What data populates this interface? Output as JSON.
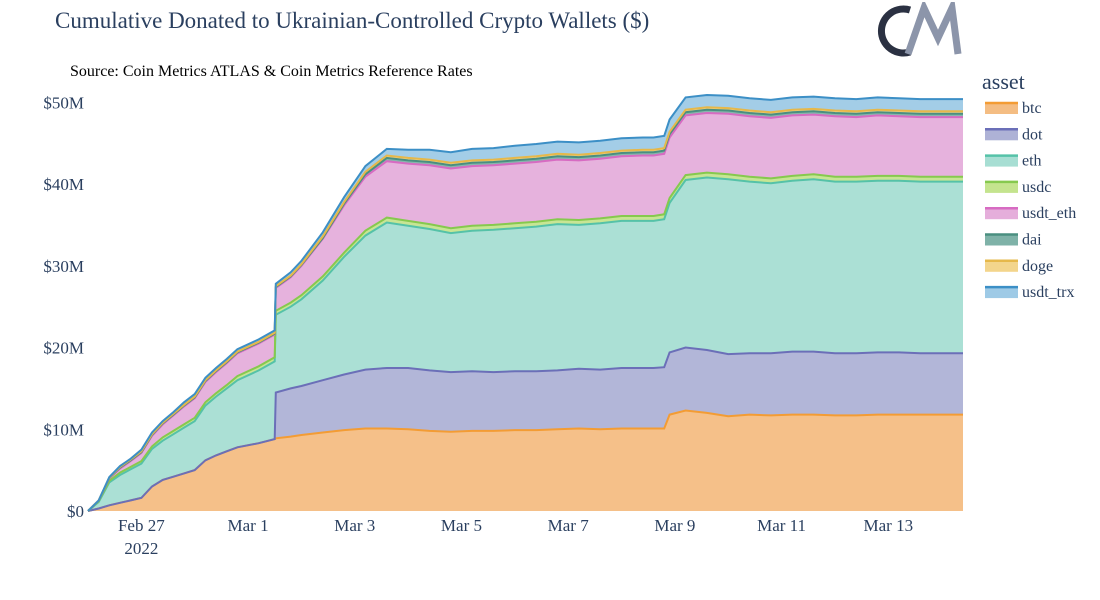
{
  "title": "Cumulative Donated to Ukrainian-Controlled Crypto Wallets ($)",
  "source": "Source: Coin Metrics ATLAS & Coin Metrics Reference Rates",
  "logo_text": "CM",
  "chart_data": {
    "type": "area",
    "stacked": true,
    "title": "Cumulative Donated to Ukrainian-Controlled Crypto Wallets ($)",
    "xlabel": "",
    "ylabel": "",
    "x_range": [
      26.0,
      34.2
    ],
    "ylim": [
      0,
      52
    ],
    "y_unit": "millions USD",
    "grid": false,
    "legend": {
      "title": "asset",
      "placement": "right"
    },
    "x_ticks": [
      {
        "x": 26.5,
        "label": "Feb 27",
        "sublabel": "2022"
      },
      {
        "x": 27.5,
        "label": "Mar 1"
      },
      {
        "x": 28.5,
        "label": "Mar 3"
      },
      {
        "x": 29.5,
        "label": "Mar 5"
      },
      {
        "x": 30.5,
        "label": "Mar 7"
      },
      {
        "x": 31.5,
        "label": "Mar 9"
      },
      {
        "x": 32.5,
        "label": "Mar 11"
      },
      {
        "x": 33.5,
        "label": "Mar 13"
      }
    ],
    "y_ticks": [
      {
        "y": 0,
        "label": "$0"
      },
      {
        "y": 10,
        "label": "$10M"
      },
      {
        "y": 20,
        "label": "$20M"
      },
      {
        "y": 30,
        "label": "$30M"
      },
      {
        "y": 40,
        "label": "$40M"
      },
      {
        "y": 50,
        "label": "$50M"
      }
    ],
    "x": [
      26.0,
      26.1,
      26.2,
      26.3,
      26.4,
      26.5,
      26.6,
      26.7,
      26.8,
      26.9,
      27.0,
      27.1,
      27.2,
      27.3,
      27.4,
      27.6,
      27.75,
      27.76,
      27.9,
      28.0,
      28.2,
      28.4,
      28.6,
      28.8,
      29.0,
      29.2,
      29.4,
      29.6,
      29.8,
      30.0,
      30.2,
      30.4,
      30.6,
      30.8,
      31.0,
      31.2,
      31.3,
      31.4,
      31.45,
      31.6,
      31.8,
      32.0,
      32.2,
      32.4,
      32.6,
      32.8,
      33.0,
      33.2,
      33.4,
      33.6,
      33.8,
      34.0,
      34.2
    ],
    "series": [
      {
        "name": "btc",
        "color": "#f4bd83",
        "line": "#f39c34",
        "values": [
          0,
          0.3,
          0.7,
          1.0,
          1.3,
          1.6,
          3.0,
          3.8,
          4.2,
          4.6,
          5.0,
          6.2,
          6.8,
          7.3,
          7.8,
          8.3,
          8.8,
          8.9,
          9.1,
          9.3,
          9.6,
          9.9,
          10.1,
          10.1,
          10.0,
          9.8,
          9.7,
          9.8,
          9.8,
          9.9,
          9.9,
          10.0,
          10.1,
          10.0,
          10.1,
          10.1,
          10.1,
          10.1,
          11.8,
          12.3,
          12.0,
          11.6,
          11.8,
          11.7,
          11.8,
          11.8,
          11.7,
          11.7,
          11.8,
          11.8,
          11.8,
          11.8,
          11.8
        ]
      },
      {
        "name": "dot",
        "color": "#aeb2d6",
        "line": "#6b6fb8",
        "values": [
          0,
          0,
          0,
          0,
          0,
          0,
          0,
          0,
          0,
          0,
          0,
          0,
          0,
          0,
          0,
          0,
          0,
          5.6,
          5.9,
          6.0,
          6.4,
          6.8,
          7.2,
          7.4,
          7.5,
          7.4,
          7.3,
          7.3,
          7.2,
          7.2,
          7.2,
          7.2,
          7.3,
          7.3,
          7.4,
          7.4,
          7.4,
          7.5,
          7.6,
          7.7,
          7.7,
          7.6,
          7.5,
          7.6,
          7.7,
          7.7,
          7.6,
          7.6,
          7.6,
          7.6,
          7.5,
          7.5,
          7.5
        ]
      },
      {
        "name": "eth",
        "color": "#a7ded3",
        "line": "#55c2a8",
        "values": [
          0,
          0.8,
          2.8,
          3.4,
          3.8,
          4.2,
          4.6,
          4.8,
          5.2,
          5.6,
          6.0,
          6.7,
          7.2,
          7.7,
          8.2,
          8.9,
          9.5,
          9.5,
          10.0,
          10.6,
          12.2,
          14.4,
          16.4,
          17.8,
          17.4,
          17.3,
          17.0,
          17.2,
          17.4,
          17.5,
          17.7,
          17.9,
          17.6,
          17.9,
          18.0,
          18.0,
          18.0,
          18.1,
          18.3,
          20.5,
          21.1,
          21.4,
          21.0,
          20.8,
          20.9,
          21.1,
          21.0,
          21.0,
          21.0,
          21.0,
          21.0,
          21.0,
          21.0
        ]
      },
      {
        "name": "usdc",
        "color": "#c4e48e",
        "line": "#86c94e",
        "values": [
          0,
          0.1,
          0.2,
          0.3,
          0.3,
          0.3,
          0.3,
          0.4,
          0.4,
          0.4,
          0.4,
          0.4,
          0.4,
          0.4,
          0.5,
          0.5,
          0.5,
          0.5,
          0.5,
          0.5,
          0.5,
          0.5,
          0.6,
          0.6,
          0.6,
          0.6,
          0.6,
          0.6,
          0.6,
          0.6,
          0.6,
          0.6,
          0.6,
          0.6,
          0.6,
          0.6,
          0.6,
          0.6,
          0.6,
          0.6,
          0.6,
          0.6,
          0.6,
          0.6,
          0.6,
          0.6,
          0.6,
          0.6,
          0.6,
          0.6,
          0.6,
          0.6,
          0.6
        ]
      },
      {
        "name": "usdt_eth",
        "color": "#e5aedb",
        "line": "#d76bc2",
        "values": [
          0,
          0.1,
          0.3,
          0.5,
          0.7,
          1.0,
          1.3,
          1.6,
          1.9,
          2.2,
          2.4,
          2.5,
          2.6,
          2.7,
          2.8,
          2.8,
          2.8,
          2.8,
          3.1,
          3.6,
          4.6,
          5.8,
          6.6,
          6.9,
          7.0,
          7.2,
          7.3,
          7.3,
          7.3,
          7.3,
          7.3,
          7.3,
          7.3,
          7.3,
          7.3,
          7.4,
          7.4,
          7.4,
          7.4,
          7.3,
          7.3,
          7.4,
          7.4,
          7.4,
          7.4,
          7.3,
          7.4,
          7.3,
          7.4,
          7.3,
          7.3,
          7.3,
          7.3
        ]
      },
      {
        "name": "dai",
        "color": "#7fb2a8",
        "line": "#4a8f80",
        "values": [
          0,
          0,
          0.05,
          0.1,
          0.1,
          0.1,
          0.1,
          0.1,
          0.1,
          0.1,
          0.1,
          0.1,
          0.1,
          0.1,
          0.1,
          0.1,
          0.1,
          0.1,
          0.1,
          0.1,
          0.1,
          0.2,
          0.3,
          0.4,
          0.4,
          0.4,
          0.4,
          0.4,
          0.4,
          0.4,
          0.4,
          0.4,
          0.4,
          0.4,
          0.4,
          0.4,
          0.4,
          0.4,
          0.4,
          0.4,
          0.4,
          0.4,
          0.4,
          0.4,
          0.4,
          0.4,
          0.4,
          0.4,
          0.4,
          0.4,
          0.4,
          0.4,
          0.4
        ]
      },
      {
        "name": "doge",
        "color": "#f3d58c",
        "line": "#e6b84a",
        "values": [
          0,
          0,
          0.05,
          0.1,
          0.1,
          0.1,
          0.1,
          0.1,
          0.1,
          0.1,
          0.1,
          0.1,
          0.1,
          0.1,
          0.1,
          0.1,
          0.1,
          0.1,
          0.1,
          0.1,
          0.2,
          0.2,
          0.3,
          0.3,
          0.3,
          0.3,
          0.3,
          0.3,
          0.3,
          0.3,
          0.3,
          0.3,
          0.3,
          0.3,
          0.3,
          0.3,
          0.3,
          0.3,
          0.3,
          0.3,
          0.3,
          0.3,
          0.3,
          0.3,
          0.3,
          0.3,
          0.3,
          0.3,
          0.3,
          0.3,
          0.3,
          0.3,
          0.3
        ]
      },
      {
        "name": "usdt_trx",
        "color": "#9ecae6",
        "line": "#3c8fc6",
        "values": [
          0,
          0,
          0.05,
          0.1,
          0.1,
          0.2,
          0.2,
          0.2,
          0.2,
          0.3,
          0.3,
          0.3,
          0.3,
          0.3,
          0.3,
          0.3,
          0.3,
          0.3,
          0.4,
          0.4,
          0.5,
          0.6,
          0.7,
          0.8,
          1.0,
          1.2,
          1.3,
          1.4,
          1.4,
          1.5,
          1.5,
          1.5,
          1.5,
          1.5,
          1.5,
          1.5,
          1.5,
          1.5,
          1.5,
          1.5,
          1.5,
          1.5,
          1.5,
          1.5,
          1.5,
          1.5,
          1.5,
          1.5,
          1.5,
          1.5,
          1.5,
          1.5,
          1.5
        ]
      }
    ]
  }
}
